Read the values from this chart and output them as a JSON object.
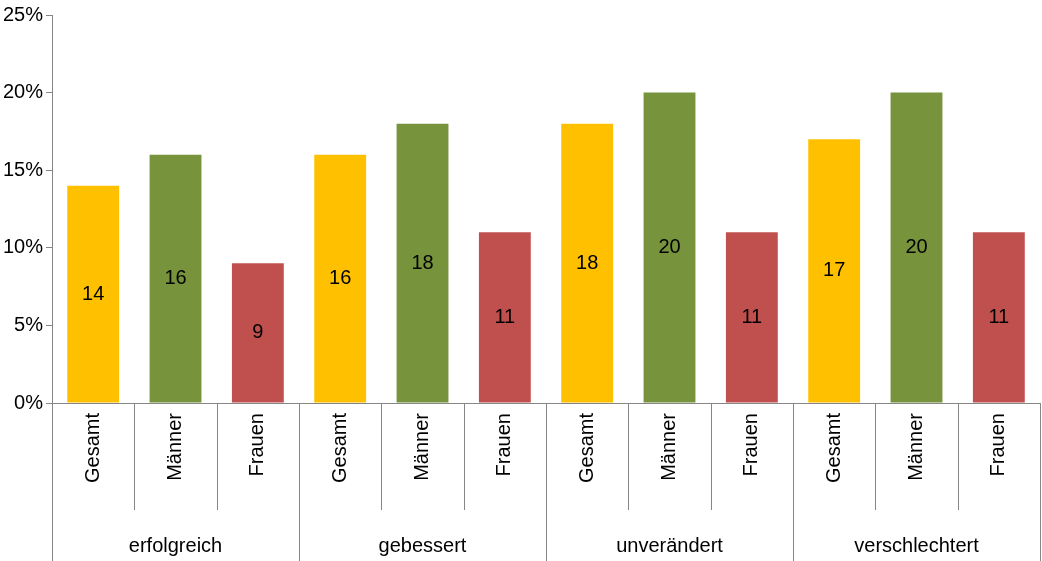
{
  "chart_data": {
    "type": "bar",
    "categories": [
      "erfolgreich",
      "gebessert",
      "unverändert",
      "verschlechtert"
    ],
    "series": [
      {
        "name": "Gesamt",
        "color": "#ffc000",
        "values": [
          14,
          16,
          18,
          17
        ]
      },
      {
        "name": "Männer",
        "color": "#77933c",
        "values": [
          16,
          18,
          20,
          20
        ]
      },
      {
        "name": "Frauen",
        "color": "#c0504d",
        "values": [
          9,
          11,
          11,
          11
        ]
      }
    ],
    "ylim": [
      0,
      25
    ],
    "yticks": [
      {
        "value": 0,
        "label": "0%"
      },
      {
        "value": 5,
        "label": "5%"
      },
      {
        "value": 10,
        "label": "10%"
      },
      {
        "value": 15,
        "label": "15%"
      },
      {
        "value": 20,
        "label": "20%"
      },
      {
        "value": 25,
        "label": "25%"
      }
    ],
    "grid": false,
    "legend": false,
    "data_labels": true
  }
}
